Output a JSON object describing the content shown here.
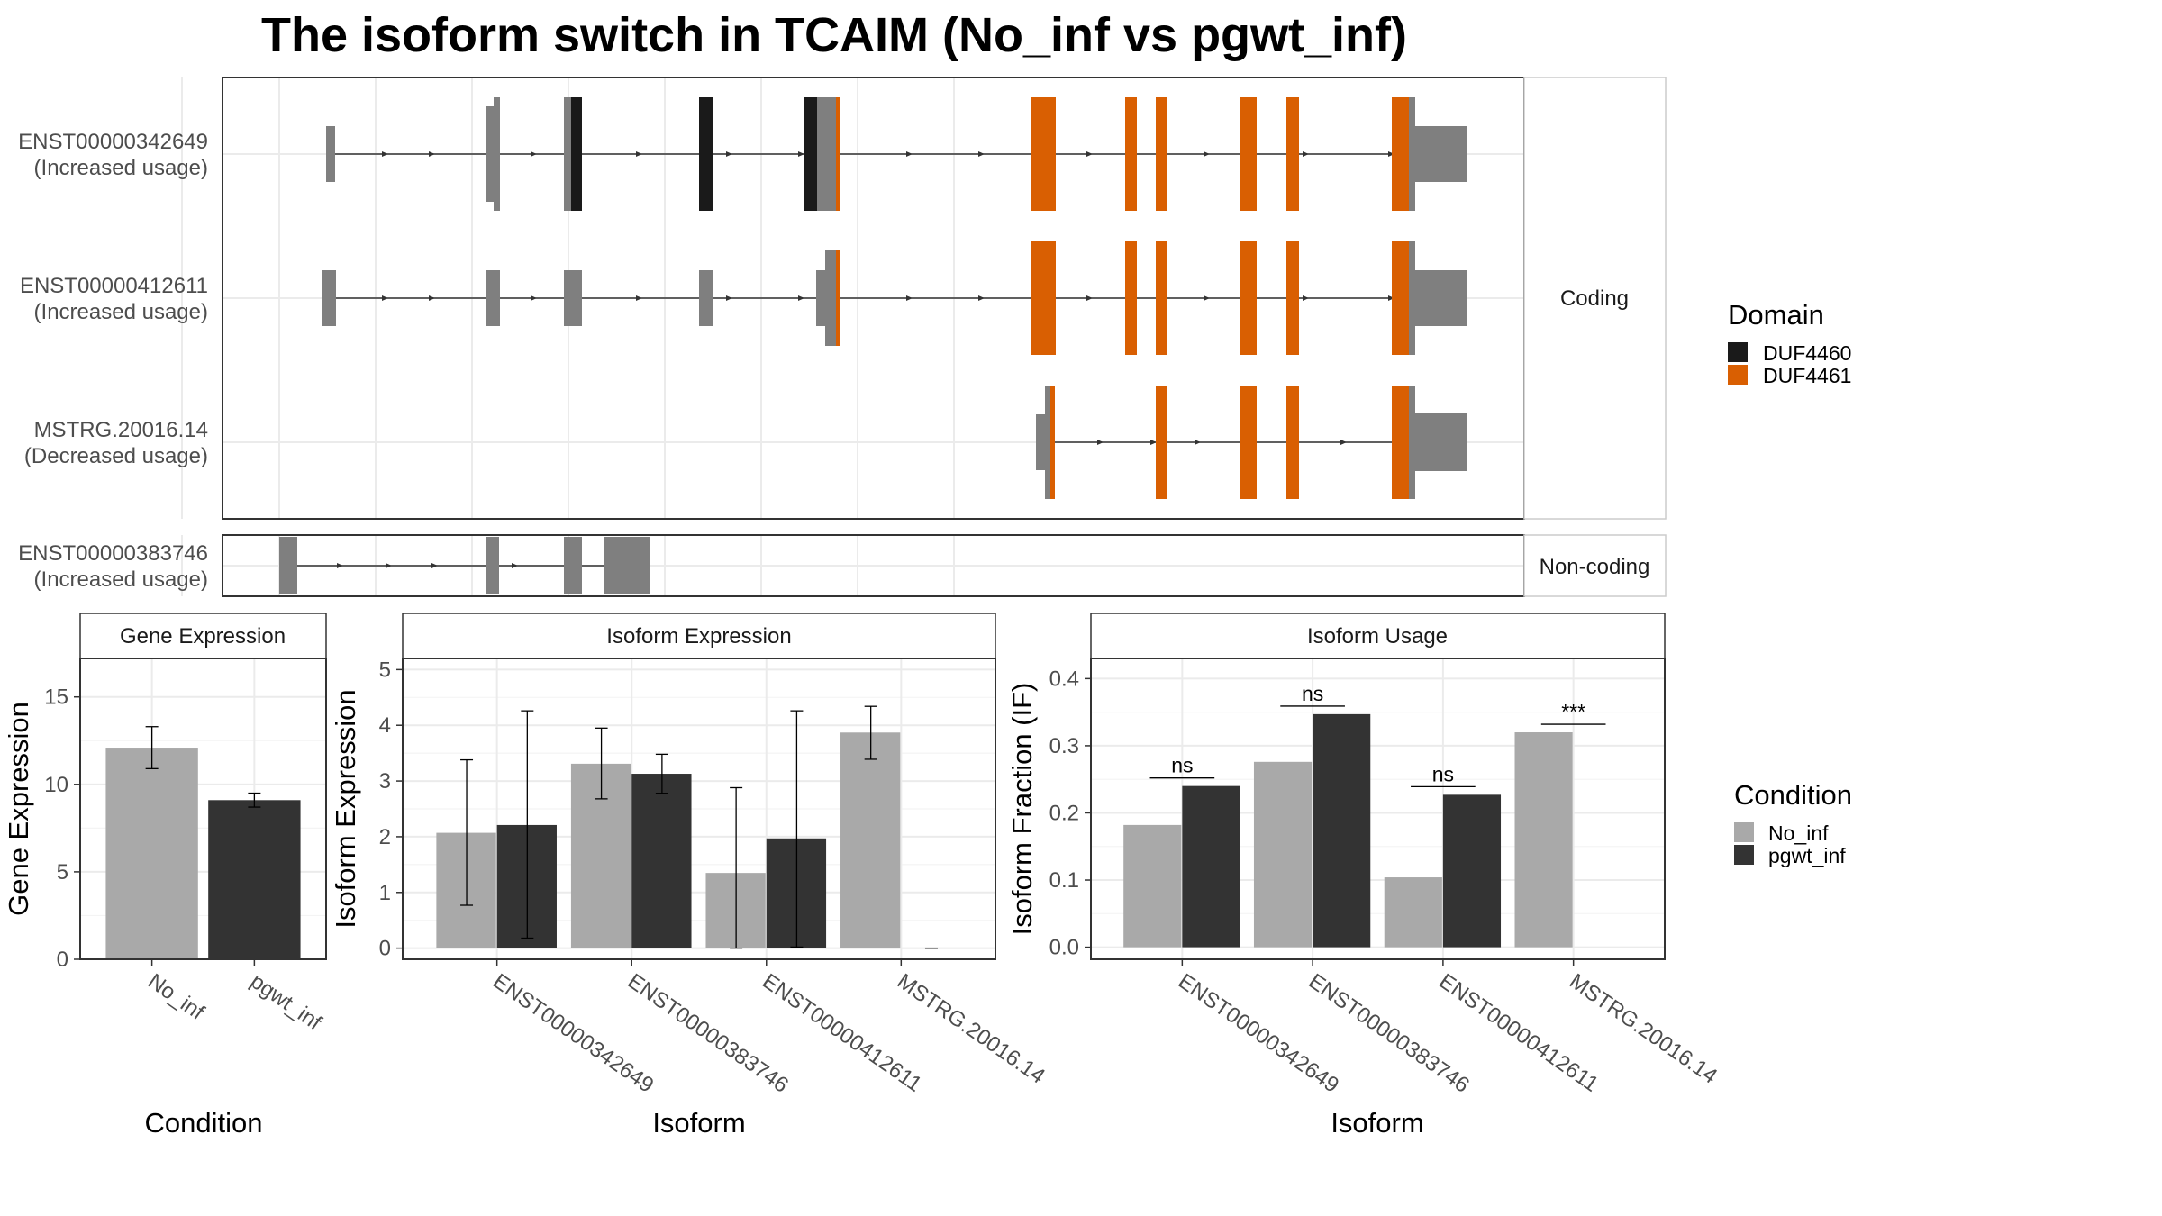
{
  "title": "The isoform switch in TCAIM (No_inf vs pgwt_inf)",
  "colors": {
    "exon": "#7f7f7f",
    "DUF4460": "#1a1a1a",
    "DUF4461": "#d95f02",
    "No_inf": "#a9a9a9",
    "pgwt_inf": "#333333",
    "grid": "#ebebeb",
    "frame": "#333333"
  },
  "structure": {
    "coding_strip": "Coding",
    "noncoding_strip": "Non-coding",
    "legend_title": "Domain",
    "legend": [
      "DUF4460",
      "DUF4461"
    ],
    "transcripts": [
      {
        "id": "ENST00000342649",
        "usage": "(Increased usage)",
        "group": "coding"
      },
      {
        "id": "ENST00000412611",
        "usage": "(Increased usage)",
        "group": "coding"
      },
      {
        "id": "MSTRG.20016.14",
        "usage": "(Decreased usage)",
        "group": "coding"
      },
      {
        "id": "ENST00000383746",
        "usage": "(Increased usage)",
        "group": "noncoding"
      }
    ]
  },
  "chart_data": [
    {
      "type": "bar",
      "title": "Gene Expression",
      "xlabel": "Condition",
      "ylabel": "Gene Expression",
      "categories": [
        "No_inf",
        "pgwt_inf"
      ],
      "values": [
        12.1,
        9.1
      ],
      "error_low": [
        10.9,
        8.7
      ],
      "error_high": [
        13.3,
        9.5
      ],
      "ylim": [
        0,
        17.2
      ],
      "yticks": [
        0,
        5,
        10,
        15
      ]
    },
    {
      "type": "bar",
      "title": "Isoform Expression",
      "xlabel": "Isoform",
      "ylabel": "Isoform Expression",
      "categories": [
        "ENST00000342649",
        "ENST00000383746",
        "ENST00000412611",
        "MSTRG.20016.14"
      ],
      "series": [
        {
          "name": "No_inf",
          "values": [
            2.07,
            3.31,
            1.35,
            3.87
          ],
          "error_low": [
            0.77,
            2.68,
            0.0,
            3.39
          ],
          "error_high": [
            3.38,
            3.95,
            2.88,
            4.34
          ]
        },
        {
          "name": "pgwt_inf",
          "values": [
            2.21,
            3.13,
            1.97,
            0.0
          ],
          "error_low": [
            0.18,
            2.78,
            0.02,
            0.0
          ],
          "error_high": [
            4.26,
            3.48,
            4.26,
            0.0
          ]
        }
      ],
      "ylim": [
        -0.2,
        5.2
      ],
      "yticks": [
        0,
        1,
        2,
        3,
        4,
        5
      ]
    },
    {
      "type": "bar",
      "title": "Isoform Usage",
      "xlabel": "Isoform",
      "ylabel": "Isoform Fraction (IF)",
      "categories": [
        "ENST00000342649",
        "ENST00000383746",
        "ENST00000412611",
        "MSTRG.20016.14"
      ],
      "series": [
        {
          "name": "No_inf",
          "values": [
            0.182,
            0.276,
            0.104,
            0.32
          ]
        },
        {
          "name": "pgwt_inf",
          "values": [
            0.24,
            0.347,
            0.227,
            0.0
          ]
        }
      ],
      "significance": [
        "ns",
        "ns",
        "ns",
        "***"
      ],
      "ylim": [
        -0.018,
        0.43
      ],
      "yticks": [
        "0.0",
        "0.1",
        "0.2",
        "0.3",
        "0.4"
      ],
      "legend_title": "Condition",
      "legend": [
        "No_inf",
        "pgwt_inf"
      ]
    }
  ]
}
